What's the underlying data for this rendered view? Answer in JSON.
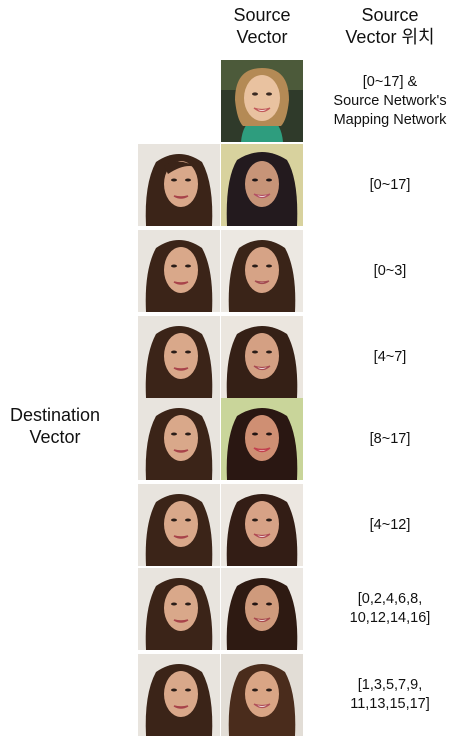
{
  "header": {
    "source_line1": "Source",
    "source_line2": "Vector",
    "position_line1": "Source",
    "position_line2": "Vector 위치"
  },
  "side_label": {
    "line1": "Destination",
    "line2": "Vector"
  },
  "rows": [
    {
      "label_lines": [
        "[0~17] &",
        "Source Network's",
        "Mapping Network"
      ]
    },
    {
      "label_lines": [
        "[0~17]"
      ]
    },
    {
      "label_lines": [
        "[0~3]"
      ]
    },
    {
      "label_lines": [
        "[4~7]"
      ]
    },
    {
      "label_lines": [
        "[8~17]"
      ]
    },
    {
      "label_lines": [
        "[4~12]"
      ]
    },
    {
      "label_lines": [
        "[0,2,4,6,8,",
        "10,12,14,16]"
      ]
    },
    {
      "label_lines": [
        "[1,3,5,7,9,",
        "11,13,15,17]"
      ]
    }
  ]
}
